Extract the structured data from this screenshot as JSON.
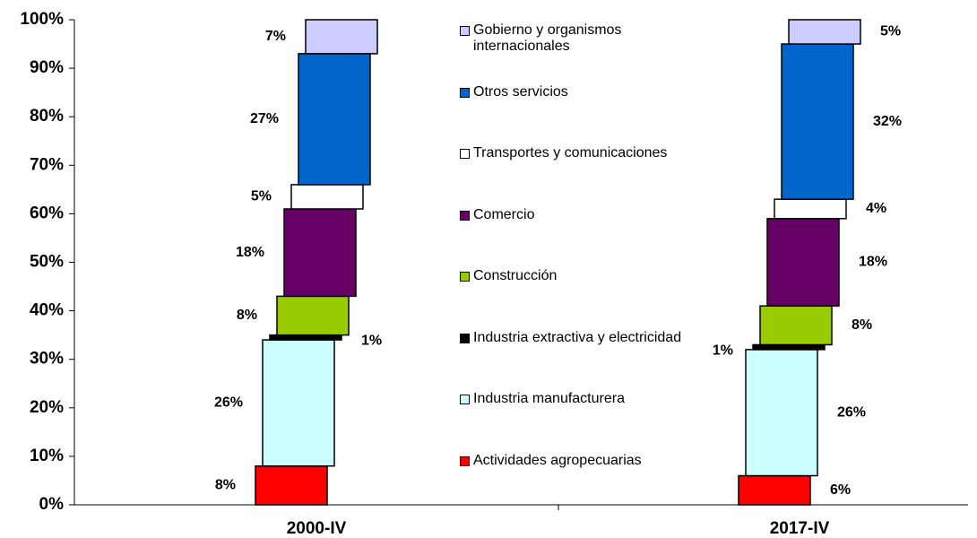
{
  "chart_data": {
    "type": "stacked_bar",
    "categories": [
      "2000-IV",
      "2017-IV"
    ],
    "series": [
      {
        "name": "Actividades agropecuarias",
        "color": "#ff0000",
        "values": [
          8,
          6
        ],
        "value_labels": [
          "8%",
          "6%"
        ]
      },
      {
        "name": "Industria manufacturera",
        "color": "#ccffff",
        "values": [
          26,
          26
        ],
        "value_labels": [
          "26%",
          "26%"
        ]
      },
      {
        "name": "Industria extractiva y electricidad",
        "color": "#000000",
        "values": [
          1,
          1
        ],
        "value_labels": [
          "1%",
          "1%"
        ]
      },
      {
        "name": "Construcción",
        "color": "#99cc00",
        "values": [
          8,
          8
        ],
        "value_labels": [
          "8%",
          "8%"
        ]
      },
      {
        "name": "Comercio",
        "color": "#660066",
        "values": [
          18,
          18
        ],
        "value_labels": [
          "18%",
          "18%"
        ]
      },
      {
        "name": "Transportes y comunicaciones",
        "color": "#ffffff",
        "values": [
          5,
          4
        ],
        "value_labels": [
          "5%",
          "4%"
        ]
      },
      {
        "name": "Otros servicios",
        "color": "#0066cc",
        "values": [
          27,
          32
        ],
        "value_labels": [
          "27%",
          "32%"
        ]
      },
      {
        "name": "Gobierno y organismos internacionales",
        "color": "#ccccff",
        "values": [
          7,
          5
        ],
        "value_labels": [
          "7%",
          "5%"
        ]
      }
    ],
    "ylim": [
      0,
      100
    ],
    "yticks": [
      {
        "value": 0,
        "label": "0%"
      },
      {
        "value": 10,
        "label": "10%"
      },
      {
        "value": 20,
        "label": "20%"
      },
      {
        "value": 30,
        "label": "30%"
      },
      {
        "value": 40,
        "label": "40%"
      },
      {
        "value": 50,
        "label": "50%"
      },
      {
        "value": 60,
        "label": "60%"
      },
      {
        "value": 70,
        "label": "70%"
      },
      {
        "value": 80,
        "label": "80%"
      },
      {
        "value": 90,
        "label": "90%"
      },
      {
        "value": 100,
        "label": "100%"
      }
    ],
    "grid": false
  }
}
